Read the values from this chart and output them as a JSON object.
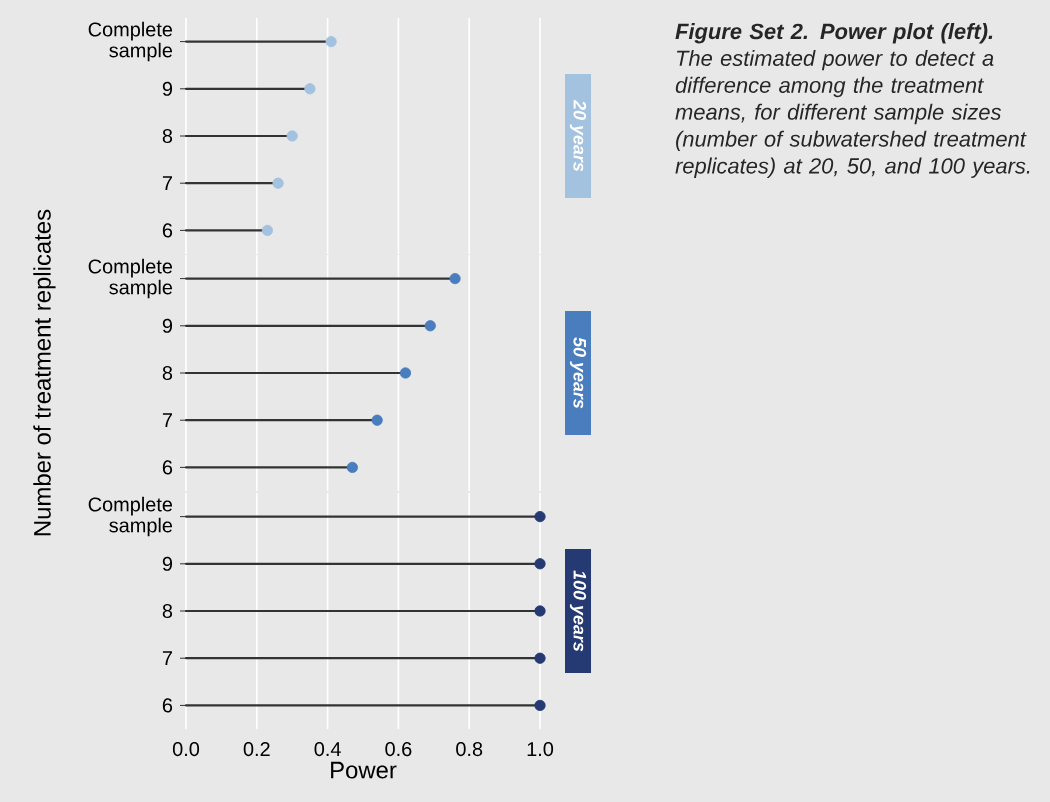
{
  "chart_data": [
    {
      "type": "lollipop",
      "orientation": "horizontal",
      "categories": [
        "Complete sample",
        "9",
        "8",
        "7",
        "6"
      ],
      "values": [
        0.41,
        0.35,
        0.3,
        0.26,
        0.23
      ],
      "color": "#a3c2df",
      "xlim": [
        0,
        1.0
      ],
      "grid": "x",
      "marker": "circle",
      "tick_labels": "y",
      "annotations": [
        "20 years",
        "**Figure Set 2. Power plot (left).** The estimated power to detect a difference among the treatment means, for different sample sizes (number of subwatershed treatment replicates) at 20, 50, and 100 years."
      ]
    },
    {
      "type": "lollipop",
      "orientation": "horizontal",
      "annotations": [
        "50 years"
      ],
      "ylabel": "Number of treatment replicates",
      "categories": [
        "Complete sample",
        "9",
        "8",
        "7",
        "6"
      ],
      "values": [
        0.76,
        0.69,
        0.62,
        0.54,
        0.47
      ],
      "color": "#4a7dbd",
      "xlim": [
        0,
        1.0
      ],
      "grid": "x",
      "marker": "circle",
      "tick_labels": "y"
    },
    {
      "type": "lollipop",
      "orientation": "horizontal",
      "annotations": [
        "100 years"
      ],
      "xlabel": "Power",
      "categories": [
        "Complete sample",
        "9",
        "8",
        "7",
        "6"
      ],
      "values": [
        1.0,
        1.0,
        1.0,
        1.0,
        1.0
      ],
      "color": "#253a73",
      "xlim": [
        0,
        1.0
      ],
      "xticks": [
        {
          "value": 0,
          "label": "0.0"
        },
        {
          "value": 0.2,
          "label": "0.2"
        },
        {
          "value": 0.4,
          "label": "0.4"
        },
        {
          "value": 0.6,
          "label": "0.6"
        },
        {
          "value": 0.8,
          "label": "0.8"
        },
        {
          "value": 1.0,
          "label": "1.0"
        }
      ],
      "grid": "x",
      "marker": "circle"
    }
  ]
}
